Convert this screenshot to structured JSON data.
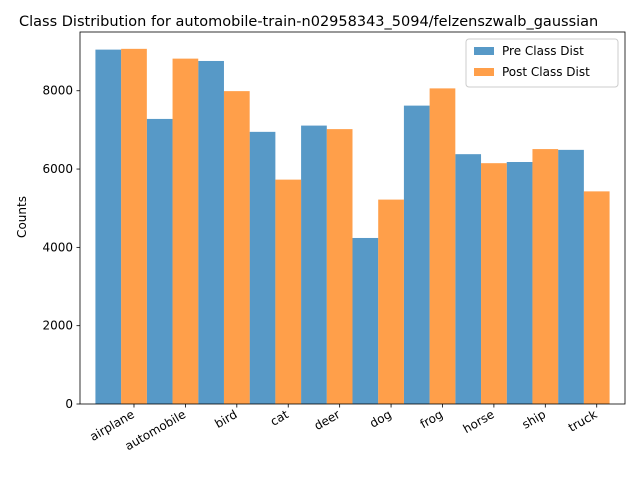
{
  "chart_data": {
    "type": "bar",
    "title": "Class Distribution for automobile-train-n02958343_5094/felzenszwalb_gaussian",
    "xlabel": "",
    "ylabel": "Counts",
    "ylim": [
      0,
      9500
    ],
    "yticks": [
      0,
      2000,
      4000,
      6000,
      8000
    ],
    "ytick_labels": [
      "0",
      "2000",
      "4000",
      "6000",
      "8000"
    ],
    "categories": [
      "airplane",
      "automobile",
      "bird",
      "cat",
      "deer",
      "dog",
      "frog",
      "horse",
      "ship",
      "truck"
    ],
    "series": [
      {
        "name": "Pre Class Dist",
        "color": "#1f77b4",
        "values": [
          9050,
          7280,
          8760,
          6950,
          7110,
          4240,
          7620,
          6380,
          6180,
          6490
        ]
      },
      {
        "name": "Post Class Dist",
        "color": "#ff7f0e",
        "values": [
          9070,
          8820,
          7990,
          5730,
          7020,
          5220,
          8060,
          6150,
          6510,
          5430
        ]
      }
    ],
    "legend_position": "top-right",
    "grid": false
  }
}
